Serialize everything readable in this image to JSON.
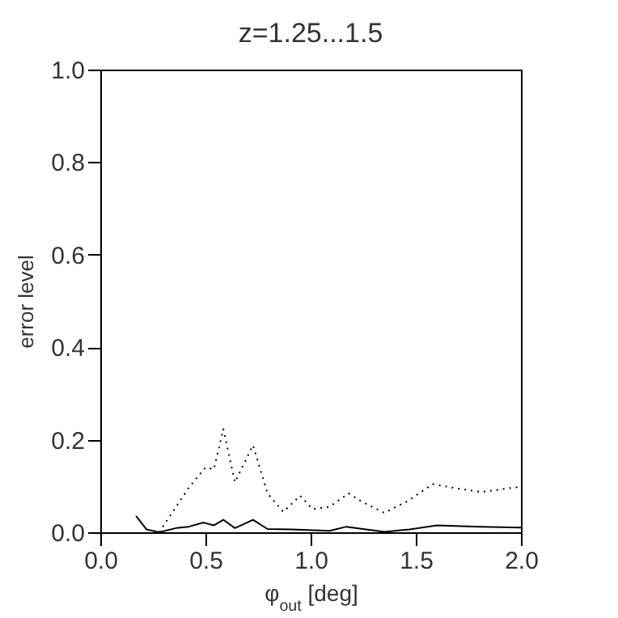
{
  "chart_data": {
    "type": "line",
    "title": "z=1.25...1.5",
    "xlabel": "φ$_{out}$ [deg]",
    "ylabel": "error level",
    "xlim": [
      0,
      2
    ],
    "ylim": [
      0,
      1
    ],
    "xticks": [
      {
        "value": 0,
        "label": "0.0"
      },
      {
        "value": 0.5,
        "label": "0.5"
      },
      {
        "value": 1,
        "label": "1.0"
      },
      {
        "value": 1.5,
        "label": "1.5"
      },
      {
        "value": 2,
        "label": "2.0"
      }
    ],
    "yticks": [
      {
        "value": 0,
        "label": "0.0"
      },
      {
        "value": 0.2,
        "label": "0.2"
      },
      {
        "value": 0.4,
        "label": "0.4"
      },
      {
        "value": 0.6,
        "label": "0.6"
      },
      {
        "value": 0.8,
        "label": "0.8"
      },
      {
        "value": 1,
        "label": "1.0"
      }
    ],
    "grid": false,
    "series": [
      {
        "color": "#000000",
        "line_style": "dotted",
        "x": [
          0.28,
          0.42,
          0.5,
          0.54,
          0.585,
          0.64,
          0.726,
          0.795,
          0.87,
          0.95,
          1.01,
          1.09,
          1.18,
          1.24,
          1.35,
          1.46,
          1.58,
          1.68,
          1.81,
          1.99
        ],
        "values": [
          0.0,
          0.096,
          0.14,
          0.136,
          0.223,
          0.108,
          0.188,
          0.084,
          0.044,
          0.079,
          0.05,
          0.055,
          0.084,
          0.067,
          0.042,
          0.067,
          0.104,
          0.096,
          0.087,
          0.098
        ]
      },
      {
        "color": "#000000",
        "line_style": "solid",
        "x": [
          0.17,
          0.22,
          0.28,
          0.36,
          0.42,
          0.49,
          0.54,
          0.585,
          0.64,
          0.726,
          0.795,
          0.91,
          1.09,
          1.17,
          1.35,
          1.47,
          1.6,
          1.81,
          2.0
        ],
        "values": [
          0.035,
          0.006,
          0.0,
          0.009,
          0.012,
          0.021,
          0.015,
          0.027,
          0.009,
          0.027,
          0.007,
          0.006,
          0.003,
          0.012,
          0.001,
          0.006,
          0.015,
          0.012,
          0.01
        ]
      }
    ]
  }
}
